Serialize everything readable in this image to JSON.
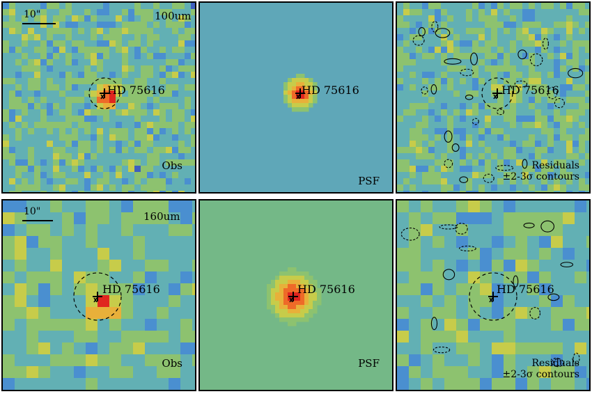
{
  "target_name": "HD 75616",
  "scale_label": "10\"",
  "rows": [
    {
      "band": "100um",
      "obs_label": "Obs",
      "psf_label": "PSF",
      "resid_label_1": "Residuals",
      "resid_label_2": "±2-3σ contours"
    },
    {
      "band": "160um",
      "obs_label": "Obs",
      "psf_label": "PSF",
      "resid_label_1": "Residuals",
      "resid_label_2": "±2-3σ contours"
    }
  ],
  "colormap": [
    "#3a2d8f",
    "#3f5fbf",
    "#4a8fd0",
    "#62b0b4",
    "#8dc26f",
    "#c7cc4a",
    "#e8b03a",
    "#ee6a28",
    "#e0261f"
  ]
}
